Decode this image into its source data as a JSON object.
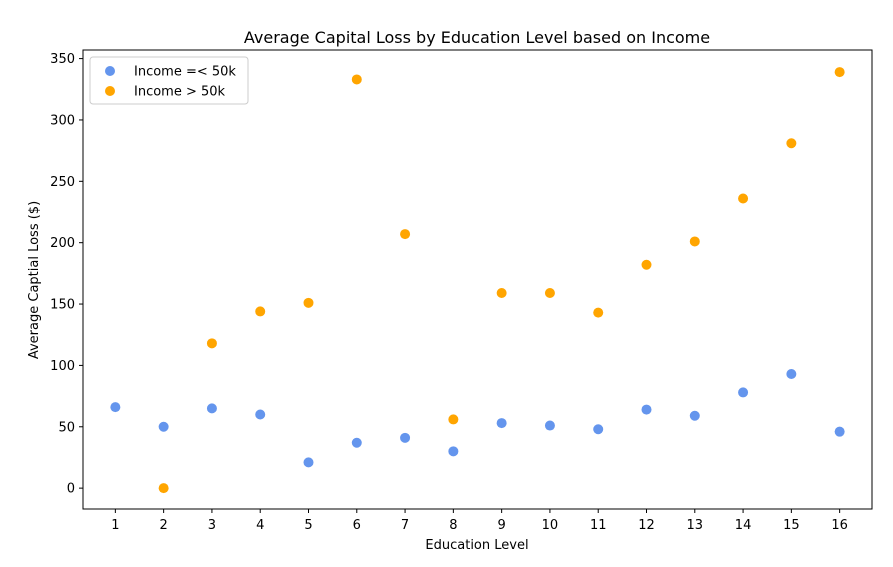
{
  "chart_data": {
    "type": "scatter",
    "title": "Average Capital Loss by Education Level based on Income",
    "xlabel": "Education Level",
    "ylabel": "Average Captial Loss ($)",
    "x": [
      1,
      2,
      3,
      4,
      5,
      6,
      7,
      8,
      9,
      10,
      11,
      12,
      13,
      14,
      15,
      16
    ],
    "x_tick_labels": [
      "1",
      "2",
      "3",
      "4",
      "5",
      "6",
      "7",
      "8",
      "9",
      "10",
      "11",
      "12",
      "13",
      "14",
      "15",
      "16"
    ],
    "y_ticks": [
      0,
      50,
      100,
      150,
      200,
      250,
      300,
      350
    ],
    "y_tick_labels": [
      "0",
      "50",
      "100",
      "150",
      "200",
      "250",
      "300",
      "350"
    ],
    "xlim": [
      0.33,
      16.67
    ],
    "ylim": [
      -17,
      357
    ],
    "grid": false,
    "legend_position": "top-left",
    "series": [
      {
        "name": "Income =< 50k",
        "color": "#6495ED",
        "values": [
          66,
          50,
          65,
          60,
          21,
          37,
          41,
          30,
          53,
          51,
          48,
          64,
          59,
          78,
          93,
          46
        ]
      },
      {
        "name": "Income > 50k",
        "color": "#FFA500",
        "values": [
          null,
          0,
          118,
          144,
          151,
          333,
          207,
          56,
          159,
          159,
          143,
          182,
          201,
          236,
          281,
          339
        ]
      }
    ]
  }
}
